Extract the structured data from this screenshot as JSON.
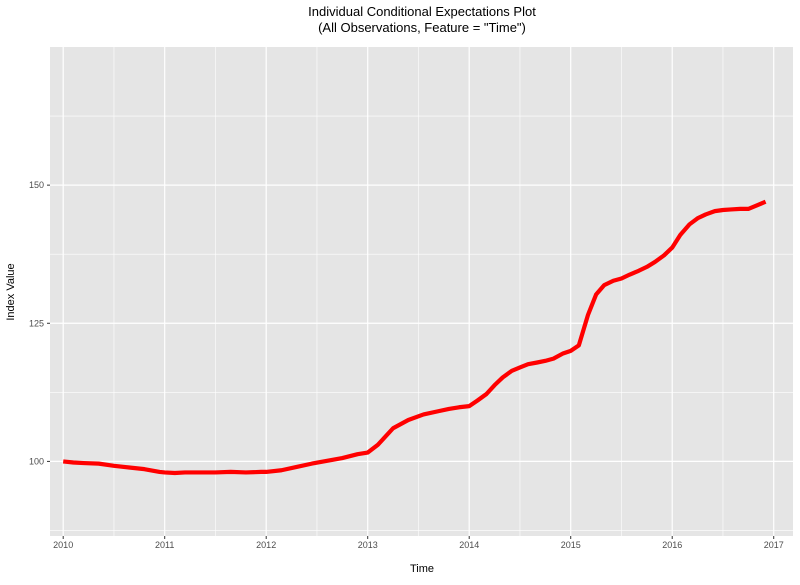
{
  "chart_data": {
    "type": "line",
    "title": "Individual Conditional Expectations Plot",
    "subtitle": "(All Observations, Feature = \"Time\")",
    "xlabel": "Time",
    "ylabel": "Index Value",
    "xlim": [
      2009.87,
      2017.19
    ],
    "ylim": [
      86.5,
      175.0
    ],
    "x_ticks": [
      2010,
      2011,
      2012,
      2013,
      2014,
      2015,
      2016,
      2017
    ],
    "y_ticks": [
      100,
      125,
      150
    ],
    "grid": true,
    "legend": "none",
    "colors": {
      "panel": "#e5e5e5",
      "grid": "#ffffff",
      "line": "#ff0000"
    },
    "series": [
      {
        "x": [
          2010.0,
          2010.1,
          2010.2,
          2010.35,
          2010.5,
          2010.65,
          2010.8,
          2010.95,
          2011.0,
          2011.1,
          2011.2,
          2011.35,
          2011.5,
          2011.65,
          2011.8,
          2011.95,
          2012.0,
          2012.15,
          2012.3,
          2012.45,
          2012.6,
          2012.75,
          2012.9,
          2013.0,
          2013.1,
          2013.25,
          2013.4,
          2013.55,
          2013.7,
          2013.8,
          2013.9,
          2014.0,
          2014.08,
          2014.17,
          2014.25,
          2014.33,
          2014.42,
          2014.5,
          2014.58,
          2014.67,
          2014.75,
          2014.83,
          2014.92,
          2015.0,
          2015.08,
          2015.17,
          2015.25,
          2015.33,
          2015.42,
          2015.5,
          2015.58,
          2015.67,
          2015.75,
          2015.83,
          2015.92,
          2016.0,
          2016.08,
          2016.17,
          2016.25,
          2016.33,
          2016.42,
          2016.5,
          2016.58,
          2016.67,
          2016.75,
          2016.83,
          2016.92
        ],
        "values": [
          100.0,
          99.8,
          99.7,
          99.6,
          99.2,
          98.9,
          98.6,
          98.1,
          98.0,
          97.9,
          98.0,
          98.0,
          98.0,
          98.1,
          98.0,
          98.1,
          98.1,
          98.4,
          99.0,
          99.6,
          100.1,
          100.6,
          101.3,
          101.6,
          103.0,
          106.0,
          107.5,
          108.5,
          109.1,
          109.5,
          109.8,
          110.0,
          111.0,
          112.2,
          113.8,
          115.2,
          116.4,
          117.0,
          117.6,
          117.9,
          118.2,
          118.6,
          119.5,
          120.0,
          121.0,
          126.5,
          130.2,
          131.9,
          132.7,
          133.1,
          133.8,
          134.5,
          135.2,
          136.1,
          137.3,
          138.7,
          141.0,
          142.9,
          144.0,
          144.7,
          145.3,
          145.5,
          145.6,
          145.7,
          145.7,
          146.3,
          147.0
        ]
      }
    ]
  }
}
